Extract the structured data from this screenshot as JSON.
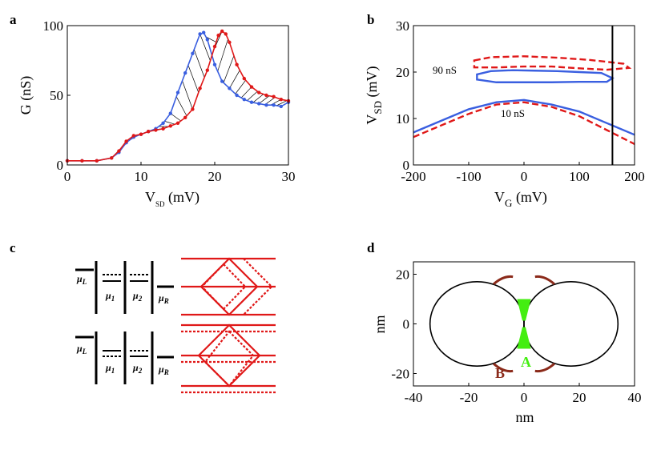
{
  "panels": {
    "a": {
      "letter": "a"
    },
    "b": {
      "letter": "b"
    },
    "c": {
      "letter": "c"
    },
    "d": {
      "letter": "d"
    }
  },
  "colors": {
    "blue": "#3a5fe0",
    "red": "#e01818",
    "black": "#000000",
    "green": "#44ee11",
    "brown": "#8b2a1a"
  },
  "chart_data": [
    {
      "panel": "a",
      "type": "line",
      "xlabel_main": "V",
      "xlabel_sub": "SD",
      "xlabel_unit": " (mV)",
      "ylabel": "G (nS)",
      "xlim": [
        0,
        30
      ],
      "ylim": [
        0,
        100
      ],
      "xticks": [
        0,
        10,
        20,
        30
      ],
      "yticks": [
        0,
        50,
        100
      ],
      "series": [
        {
          "name": "blue",
          "color": "#3a5fe0",
          "x": [
            0,
            2,
            4,
            6,
            7,
            8,
            9,
            10,
            11,
            12,
            13,
            14,
            15,
            16,
            17,
            18,
            18.5,
            19,
            20,
            21,
            22,
            23,
            24,
            25,
            26,
            27,
            28,
            29,
            30
          ],
          "y": [
            3,
            3,
            3,
            5,
            9,
            16,
            20,
            22,
            24,
            26,
            30,
            37,
            52,
            66,
            80,
            94,
            95,
            90,
            72,
            60,
            55,
            50,
            47,
            45,
            44,
            43,
            43,
            42,
            45
          ]
        },
        {
          "name": "red",
          "color": "#e01818",
          "x": [
            0,
            2,
            4,
            6,
            7,
            8,
            9,
            10,
            11,
            12,
            13,
            14,
            15,
            16,
            17,
            18,
            19,
            20,
            20.5,
            21,
            21.5,
            22,
            23,
            24,
            25,
            26,
            27,
            28,
            29,
            30
          ],
          "y": [
            3,
            3,
            3,
            5,
            10,
            17,
            21,
            22,
            24,
            25,
            26,
            28,
            30,
            34,
            40,
            55,
            68,
            85,
            93,
            96,
            94,
            88,
            72,
            62,
            56,
            52,
            50,
            49,
            47,
            46
          ]
        }
      ]
    },
    {
      "panel": "b",
      "type": "line",
      "xlabel_main": "V",
      "xlabel_sub": "G",
      "xlabel_unit": " (mV)",
      "ylabel_main": "V",
      "ylabel_sub": "SD",
      "ylabel_unit": " (mV)",
      "xlim": [
        -200,
        200
      ],
      "ylim": [
        0,
        30
      ],
      "xticks": [
        -200,
        -100,
        0,
        100,
        200
      ],
      "yticks": [
        0,
        10,
        20,
        30
      ],
      "annotations": [
        "90 nS",
        "10 nS"
      ],
      "vline_x": 160,
      "series": [
        {
          "name": "blue 10 nS",
          "color": "#3a5fe0",
          "style": "solid",
          "x": [
            -200,
            -150,
            -100,
            -50,
            0,
            50,
            100,
            150,
            200
          ],
          "y": [
            7,
            9.5,
            12,
            13.5,
            14,
            13,
            11.5,
            9,
            6.5
          ]
        },
        {
          "name": "red 10 nS",
          "color": "#e01818",
          "style": "dashed",
          "x": [
            -200,
            -150,
            -100,
            -50,
            0,
            50,
            100,
            150,
            200
          ],
          "y": [
            6,
            8.5,
            11,
            13,
            13.5,
            12.5,
            10.5,
            7.5,
            4.5
          ]
        },
        {
          "name": "blue 90 nS loop",
          "color": "#3a5fe0",
          "style": "solid",
          "closed": true,
          "x": [
            -85,
            -60,
            -20,
            20,
            60,
            100,
            140,
            160,
            150,
            100,
            50,
            0,
            -50,
            -85
          ],
          "y": [
            19.5,
            20.2,
            20.4,
            20.3,
            20.2,
            20.0,
            19.8,
            18.7,
            17.9,
            17.9,
            17.8,
            17.8,
            17.8,
            18.4
          ]
        },
        {
          "name": "red 90 nS loop",
          "color": "#e01818",
          "style": "dashed",
          "closed": true,
          "x": [
            -90,
            -60,
            0,
            60,
            120,
            180,
            190,
            150,
            100,
            50,
            0,
            -50,
            -90
          ],
          "y": [
            22.5,
            23.2,
            23.4,
            23.1,
            22.6,
            21.8,
            20.9,
            20.5,
            20.8,
            21.2,
            21.2,
            21.0,
            21.0
          ]
        }
      ]
    },
    {
      "panel": "d",
      "type": "scatter",
      "xlabel": "nm",
      "ylabel": "nm",
      "xlim": [
        -40,
        40
      ],
      "ylim": [
        -25,
        25
      ],
      "xticks": [
        -40,
        -20,
        0,
        20,
        40
      ],
      "yticks": [
        -20,
        0,
        20
      ],
      "circles": [
        {
          "cx": -17,
          "cy": 0,
          "r": 17
        },
        {
          "cx": 17,
          "cy": 0,
          "r": 17
        }
      ],
      "labels": {
        "A": "A",
        "B": "B"
      }
    }
  ],
  "diagram_c": {
    "rows": [
      {
        "mu_L": "μ",
        "mu_L_sub": "L",
        "mu_1": "μ",
        "mu_1_sub": "1",
        "mu_2": "μ",
        "mu_2_sub": "2",
        "mu_R": "μ",
        "mu_R_sub": "R"
      },
      {
        "mu_L": "μ",
        "mu_L_sub": "L",
        "mu_1": "μ",
        "mu_1_sub": "1",
        "mu_2": "μ",
        "mu_2_sub": "2",
        "mu_R": "μ",
        "mu_R_sub": "R"
      }
    ]
  }
}
